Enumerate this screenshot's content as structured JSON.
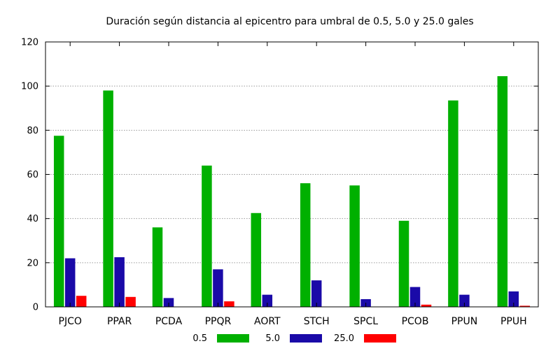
{
  "chart_data": {
    "type": "bar",
    "title": "Duración según distancia al epicentro para umbral de 0.5, 5.0 y 25.0 gales",
    "xlabel": "",
    "ylabel": "",
    "ylim": [
      0,
      120
    ],
    "yticks": [
      0,
      20,
      40,
      60,
      80,
      100,
      120
    ],
    "grid": true,
    "legend_position": "bottom",
    "categories": [
      "PJCO",
      "PPAR",
      "PCDA",
      "PPQR",
      "AORT",
      "STCH",
      "SPCL",
      "PCOB",
      "PPUN",
      "PPUH"
    ],
    "series": [
      {
        "name": "0.5",
        "color": "#00b000",
        "values": [
          77.5,
          98,
          36,
          64,
          42.5,
          56,
          55,
          39,
          93.5,
          104.5
        ]
      },
      {
        "name": "5.0",
        "color": "#1a0aa8",
        "values": [
          22,
          22.5,
          4,
          17,
          5.5,
          12,
          3.5,
          9,
          5.5,
          7
        ]
      },
      {
        "name": "25.0",
        "color": "#ff0000",
        "values": [
          5,
          4.5,
          0,
          2.5,
          0,
          0,
          0,
          1,
          0,
          0.5
        ]
      }
    ]
  }
}
